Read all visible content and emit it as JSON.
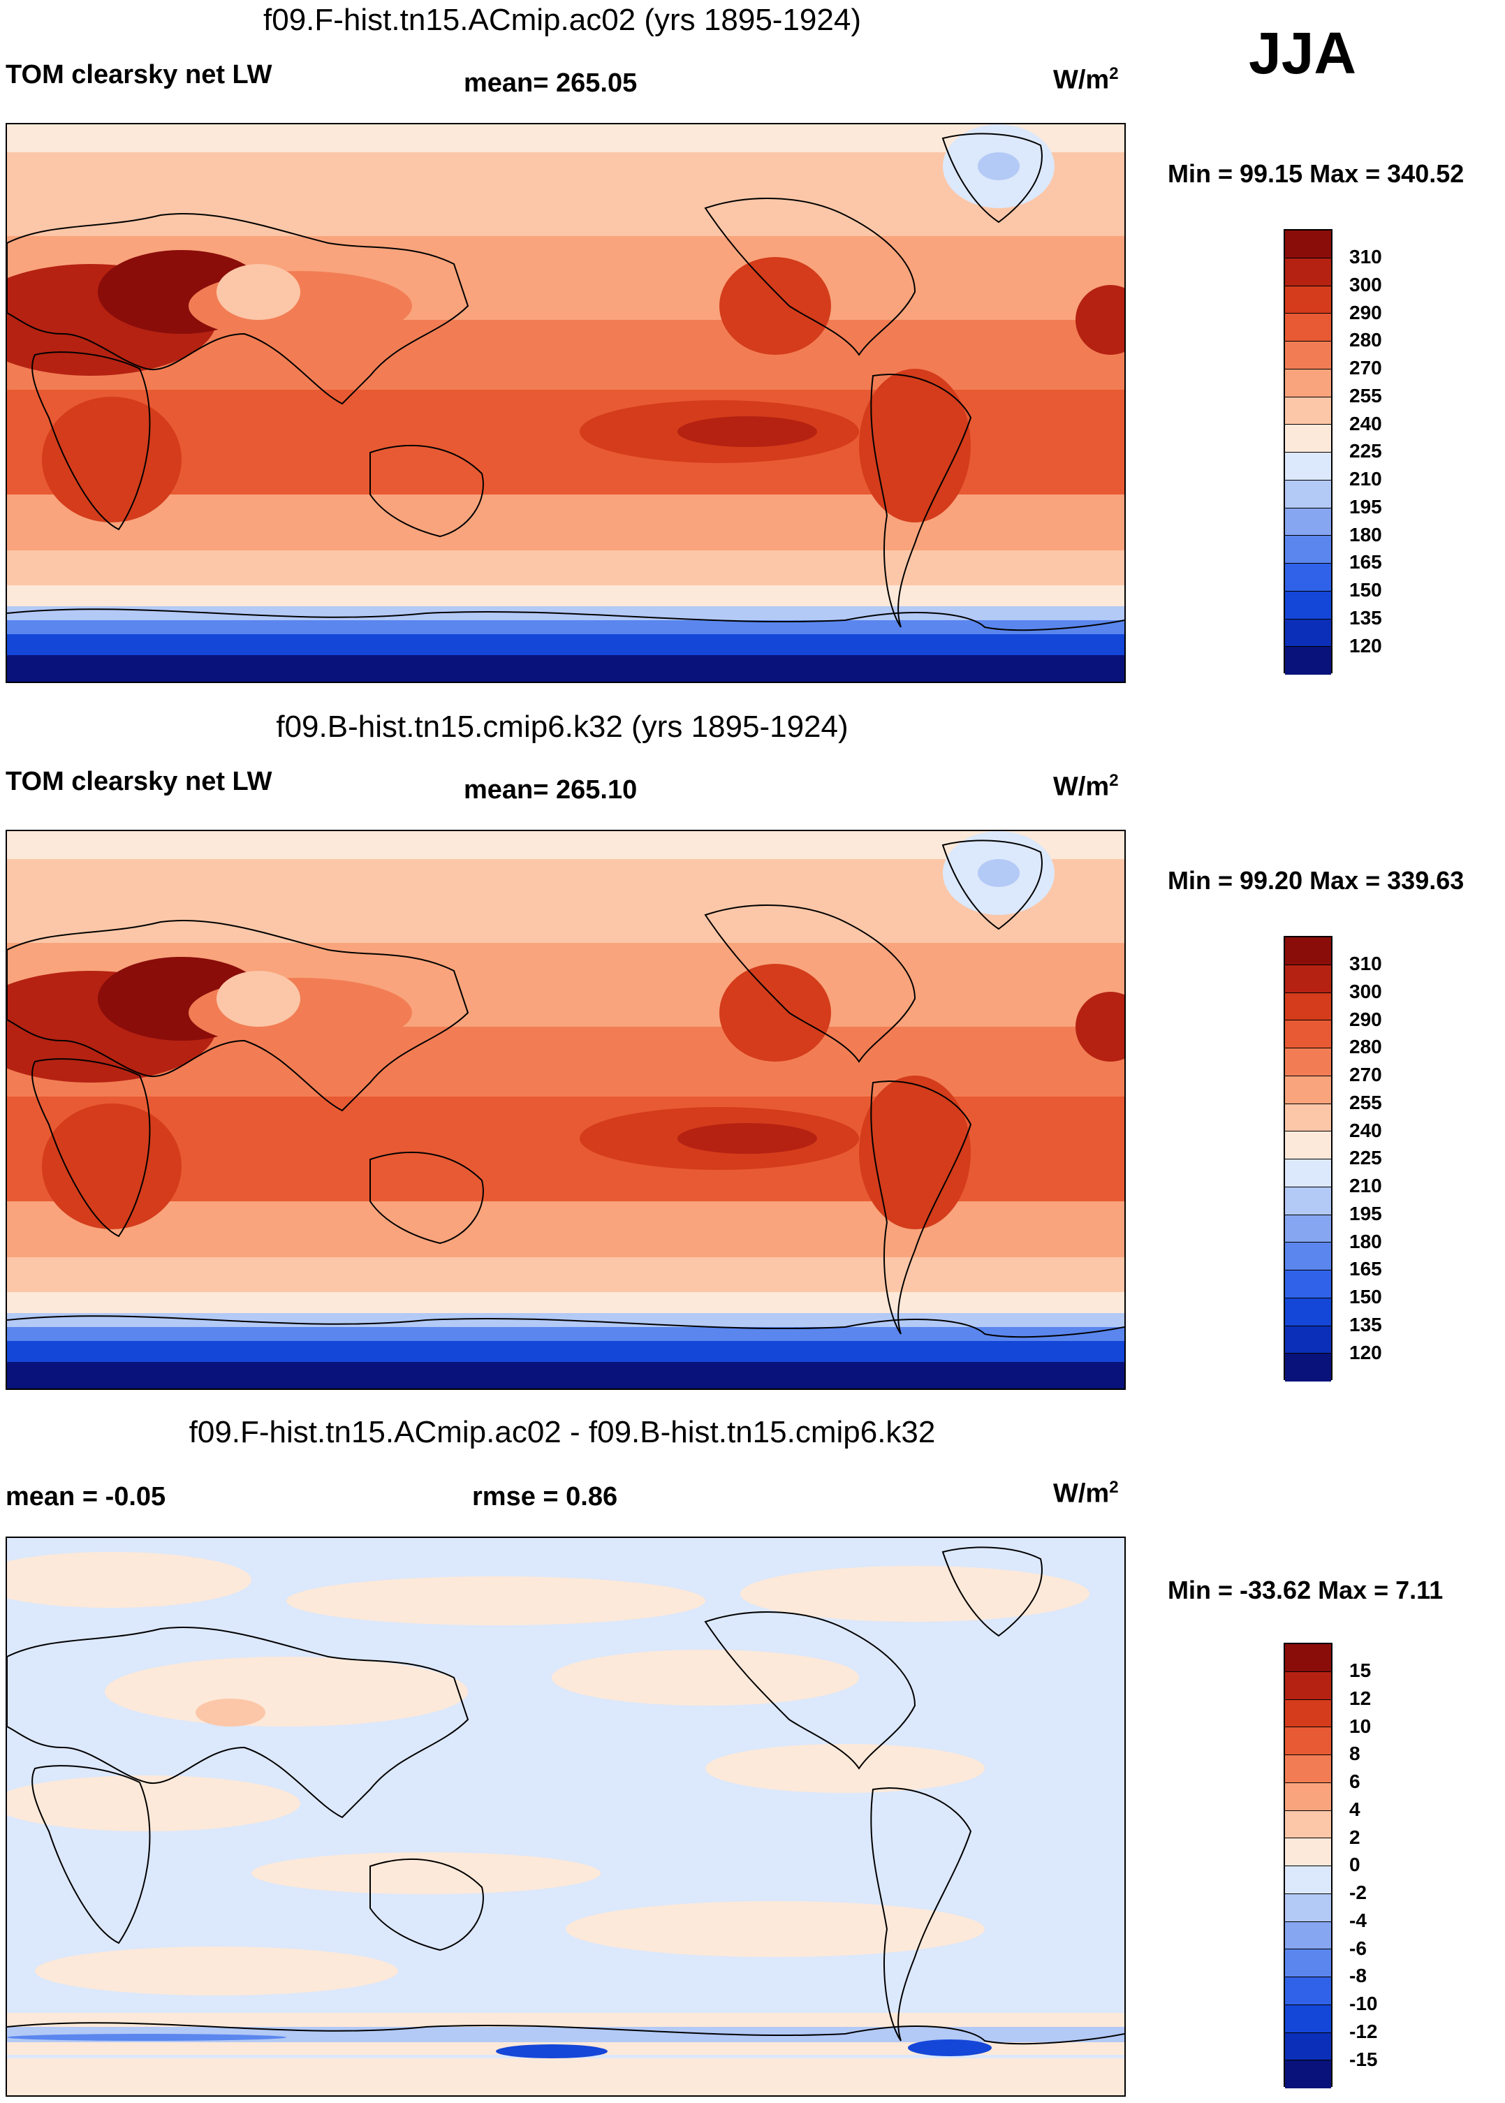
{
  "season": "JJA",
  "panels": [
    {
      "title": "f09.F-hist.tn15.ACmip.ac02 (yrs 1895-1924)",
      "left_label": "TOM clearsky net LW",
      "center_label": "mean= 265.05",
      "units_base": "W/m",
      "units_sup": "2",
      "minmax": "Min =  99.15 Max = 340.52"
    },
    {
      "title": "f09.B-hist.tn15.cmip6.k32 (yrs 1895-1924)",
      "left_label": "TOM clearsky net LW",
      "center_label": "mean= 265.10",
      "units_base": "W/m",
      "units_sup": "2",
      "minmax": "Min =  99.20 Max = 339.63"
    },
    {
      "title": "f09.F-hist.tn15.ACmip.ac02 - f09.B-hist.tn15.cmip6.k32",
      "left_label": "mean =  -0.05",
      "center_label": "rmse =   0.86",
      "units_base": "W/m",
      "units_sup": "2",
      "minmax": "Min = -33.62 Max =   7.11"
    }
  ],
  "chart_data": [
    {
      "type": "heatmap",
      "title": "f09.F-hist.tn15.ACmip.ac02 (yrs 1895-1924)",
      "variable": "TOM clearsky net LW",
      "units": "W/m2",
      "mean": 265.05,
      "min": 99.15,
      "max": 340.52,
      "colorbar_levels": [
        120,
        135,
        150,
        165,
        180,
        195,
        210,
        225,
        240,
        255,
        270,
        280,
        290,
        300,
        310
      ],
      "colorbar_colors": [
        "#08127a",
        "#0b2fb8",
        "#1446d8",
        "#2f62e8",
        "#5a86ee",
        "#86a6f1",
        "#b3c9f6",
        "#dce8fb",
        "#fde9d9",
        "#fcc7a8",
        "#f9a47c",
        "#f27d54",
        "#e85a33",
        "#d43c1b",
        "#b52212",
        "#8a0d0a"
      ]
    },
    {
      "type": "heatmap",
      "title": "f09.B-hist.tn15.cmip6.k32 (yrs 1895-1924)",
      "variable": "TOM clearsky net LW",
      "units": "W/m2",
      "mean": 265.1,
      "min": 99.2,
      "max": 339.63,
      "colorbar_levels": [
        120,
        135,
        150,
        165,
        180,
        195,
        210,
        225,
        240,
        255,
        270,
        280,
        290,
        300,
        310
      ],
      "colorbar_colors": [
        "#08127a",
        "#0b2fb8",
        "#1446d8",
        "#2f62e8",
        "#5a86ee",
        "#86a6f1",
        "#b3c9f6",
        "#dce8fb",
        "#fde9d9",
        "#fcc7a8",
        "#f9a47c",
        "#f27d54",
        "#e85a33",
        "#d43c1b",
        "#b52212",
        "#8a0d0a"
      ]
    },
    {
      "type": "heatmap",
      "title": "f09.F-hist.tn15.ACmip.ac02 - f09.B-hist.tn15.cmip6.k32",
      "units": "W/m2",
      "mean": -0.05,
      "rmse": 0.86,
      "min": -33.62,
      "max": 7.11,
      "colorbar_levels": [
        -15,
        -12,
        -10,
        -8,
        -6,
        -4,
        -2,
        0,
        2,
        4,
        6,
        8,
        10,
        12,
        15
      ],
      "colorbar_colors": [
        "#08127a",
        "#0b2fb8",
        "#1446d8",
        "#2f62e8",
        "#5a86ee",
        "#86a6f1",
        "#b3c9f6",
        "#dce8fb",
        "#fde9d9",
        "#fcc7a8",
        "#f9a47c",
        "#f27d54",
        "#e85a33",
        "#d43c1b",
        "#b52212",
        "#8a0d0a"
      ]
    }
  ]
}
